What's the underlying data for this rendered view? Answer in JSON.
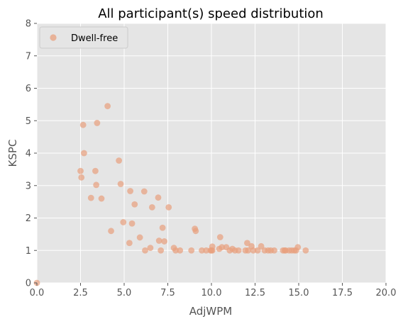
{
  "chart_data": {
    "type": "scatter",
    "title": "All participant(s) speed distribution",
    "xlabel": "AdjWPM",
    "ylabel": "KSPC",
    "xlim": [
      0,
      20
    ],
    "ylim": [
      0,
      8
    ],
    "xticks": [
      "0.0",
      "2.5",
      "5.0",
      "7.5",
      "10.0",
      "12.5",
      "15.0",
      "17.5",
      "20.0"
    ],
    "yticks": [
      "0",
      "1",
      "2",
      "3",
      "4",
      "5",
      "6",
      "7",
      "8"
    ],
    "grid": true,
    "legend": "top-left",
    "series": [
      {
        "name": "Dwell-free",
        "color": "#E8A07E",
        "points": [
          [
            0.0,
            0.0
          ],
          [
            2.5,
            3.45
          ],
          [
            2.55,
            3.25
          ],
          [
            2.65,
            4.87
          ],
          [
            2.7,
            4.0
          ],
          [
            3.1,
            2.62
          ],
          [
            3.35,
            3.45
          ],
          [
            3.4,
            3.02
          ],
          [
            3.45,
            4.93
          ],
          [
            3.7,
            2.6
          ],
          [
            4.05,
            5.45
          ],
          [
            4.25,
            1.6
          ],
          [
            4.7,
            3.77
          ],
          [
            4.8,
            3.05
          ],
          [
            4.95,
            1.87
          ],
          [
            5.3,
            1.23
          ],
          [
            5.35,
            2.83
          ],
          [
            5.45,
            1.83
          ],
          [
            5.6,
            2.42
          ],
          [
            5.9,
            1.4
          ],
          [
            6.15,
            2.82
          ],
          [
            6.2,
            1.0
          ],
          [
            6.5,
            1.08
          ],
          [
            6.6,
            2.33
          ],
          [
            6.95,
            2.63
          ],
          [
            7.0,
            1.3
          ],
          [
            7.1,
            1.0
          ],
          [
            7.2,
            1.7
          ],
          [
            7.3,
            1.28
          ],
          [
            7.55,
            2.33
          ],
          [
            7.85,
            1.08
          ],
          [
            7.95,
            1.0
          ],
          [
            8.2,
            1.0
          ],
          [
            8.85,
            1.0
          ],
          [
            9.05,
            1.67
          ],
          [
            9.1,
            1.6
          ],
          [
            9.45,
            1.0
          ],
          [
            9.7,
            1.0
          ],
          [
            9.95,
            1.0
          ],
          [
            10.0,
            1.0
          ],
          [
            10.05,
            1.0
          ],
          [
            10.05,
            1.12
          ],
          [
            10.45,
            1.05
          ],
          [
            10.5,
            1.41
          ],
          [
            10.6,
            1.1
          ],
          [
            10.85,
            1.1
          ],
          [
            11.05,
            1.0
          ],
          [
            11.2,
            1.05
          ],
          [
            11.35,
            1.0
          ],
          [
            11.55,
            1.0
          ],
          [
            11.95,
            1.0
          ],
          [
            12.05,
            1.23
          ],
          [
            12.1,
            1.0
          ],
          [
            12.3,
            1.13
          ],
          [
            12.4,
            1.0
          ],
          [
            12.65,
            1.0
          ],
          [
            12.85,
            1.13
          ],
          [
            13.05,
            1.0
          ],
          [
            13.25,
            1.0
          ],
          [
            13.4,
            1.0
          ],
          [
            13.6,
            1.0
          ],
          [
            14.1,
            1.0
          ],
          [
            14.2,
            1.0
          ],
          [
            14.25,
            1.0
          ],
          [
            14.45,
            1.0
          ],
          [
            14.6,
            1.0
          ],
          [
            14.75,
            1.0
          ],
          [
            14.85,
            1.0
          ],
          [
            14.95,
            1.1
          ],
          [
            15.4,
            1.0
          ]
        ]
      }
    ]
  }
}
